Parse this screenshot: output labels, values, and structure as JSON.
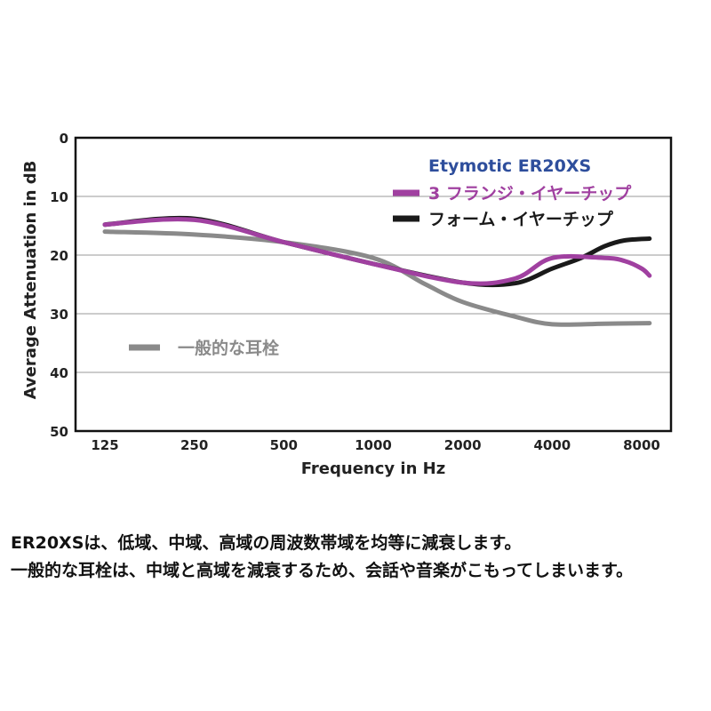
{
  "chart_data": {
    "type": "line",
    "title": "Etymotic ER20XS",
    "xlabel": "Frequency in Hz",
    "ylabel": "Average Attenuation in dB",
    "x_ticks": [
      "125",
      "250",
      "500",
      "1000",
      "2000",
      "4000",
      "8000"
    ],
    "y_ticks": [
      "0",
      "10",
      "20",
      "30",
      "40",
      "50"
    ],
    "ylim": [
      0,
      50
    ],
    "y_inverted": true,
    "x_scale": "log",
    "xlim": [
      125,
      8000
    ],
    "grid": "horizontal",
    "series": [
      {
        "name": "3 フランジ・イヤーチップ",
        "color": "#a040a0",
        "x": [
          125,
          250,
          500,
          1000,
          2000,
          3000,
          4000,
          6000,
          7000,
          8000,
          8500
        ],
        "y": [
          14.8,
          14.0,
          17.8,
          21.5,
          24.7,
          24.0,
          20.5,
          20.5,
          21.0,
          22.3,
          23.5
        ]
      },
      {
        "name": "フォーム・イヤーチップ",
        "color": "#1a1a1a",
        "x": [
          125,
          250,
          500,
          1000,
          2000,
          3000,
          4000,
          5000,
          6000,
          7000,
          8500
        ],
        "y": [
          14.8,
          13.8,
          17.8,
          21.5,
          24.7,
          24.8,
          22.3,
          20.5,
          18.5,
          17.5,
          17.2
        ]
      },
      {
        "name": "一般的な耳栓",
        "color": "#8a8a8a",
        "x": [
          125,
          250,
          500,
          1000,
          1500,
          2000,
          3000,
          4000,
          6000,
          8500
        ],
        "y": [
          16.0,
          16.5,
          17.8,
          20.5,
          25.0,
          28.0,
          30.5,
          31.8,
          31.7,
          31.6
        ]
      }
    ]
  },
  "captions": {
    "line1": "ER20XSは、低域、中域、高域の周波数帯域を均等に減衰します。",
    "line2": "一般的な耳栓は、中域と高域を減衰するため、会話や音楽がこもってしまいます。"
  }
}
